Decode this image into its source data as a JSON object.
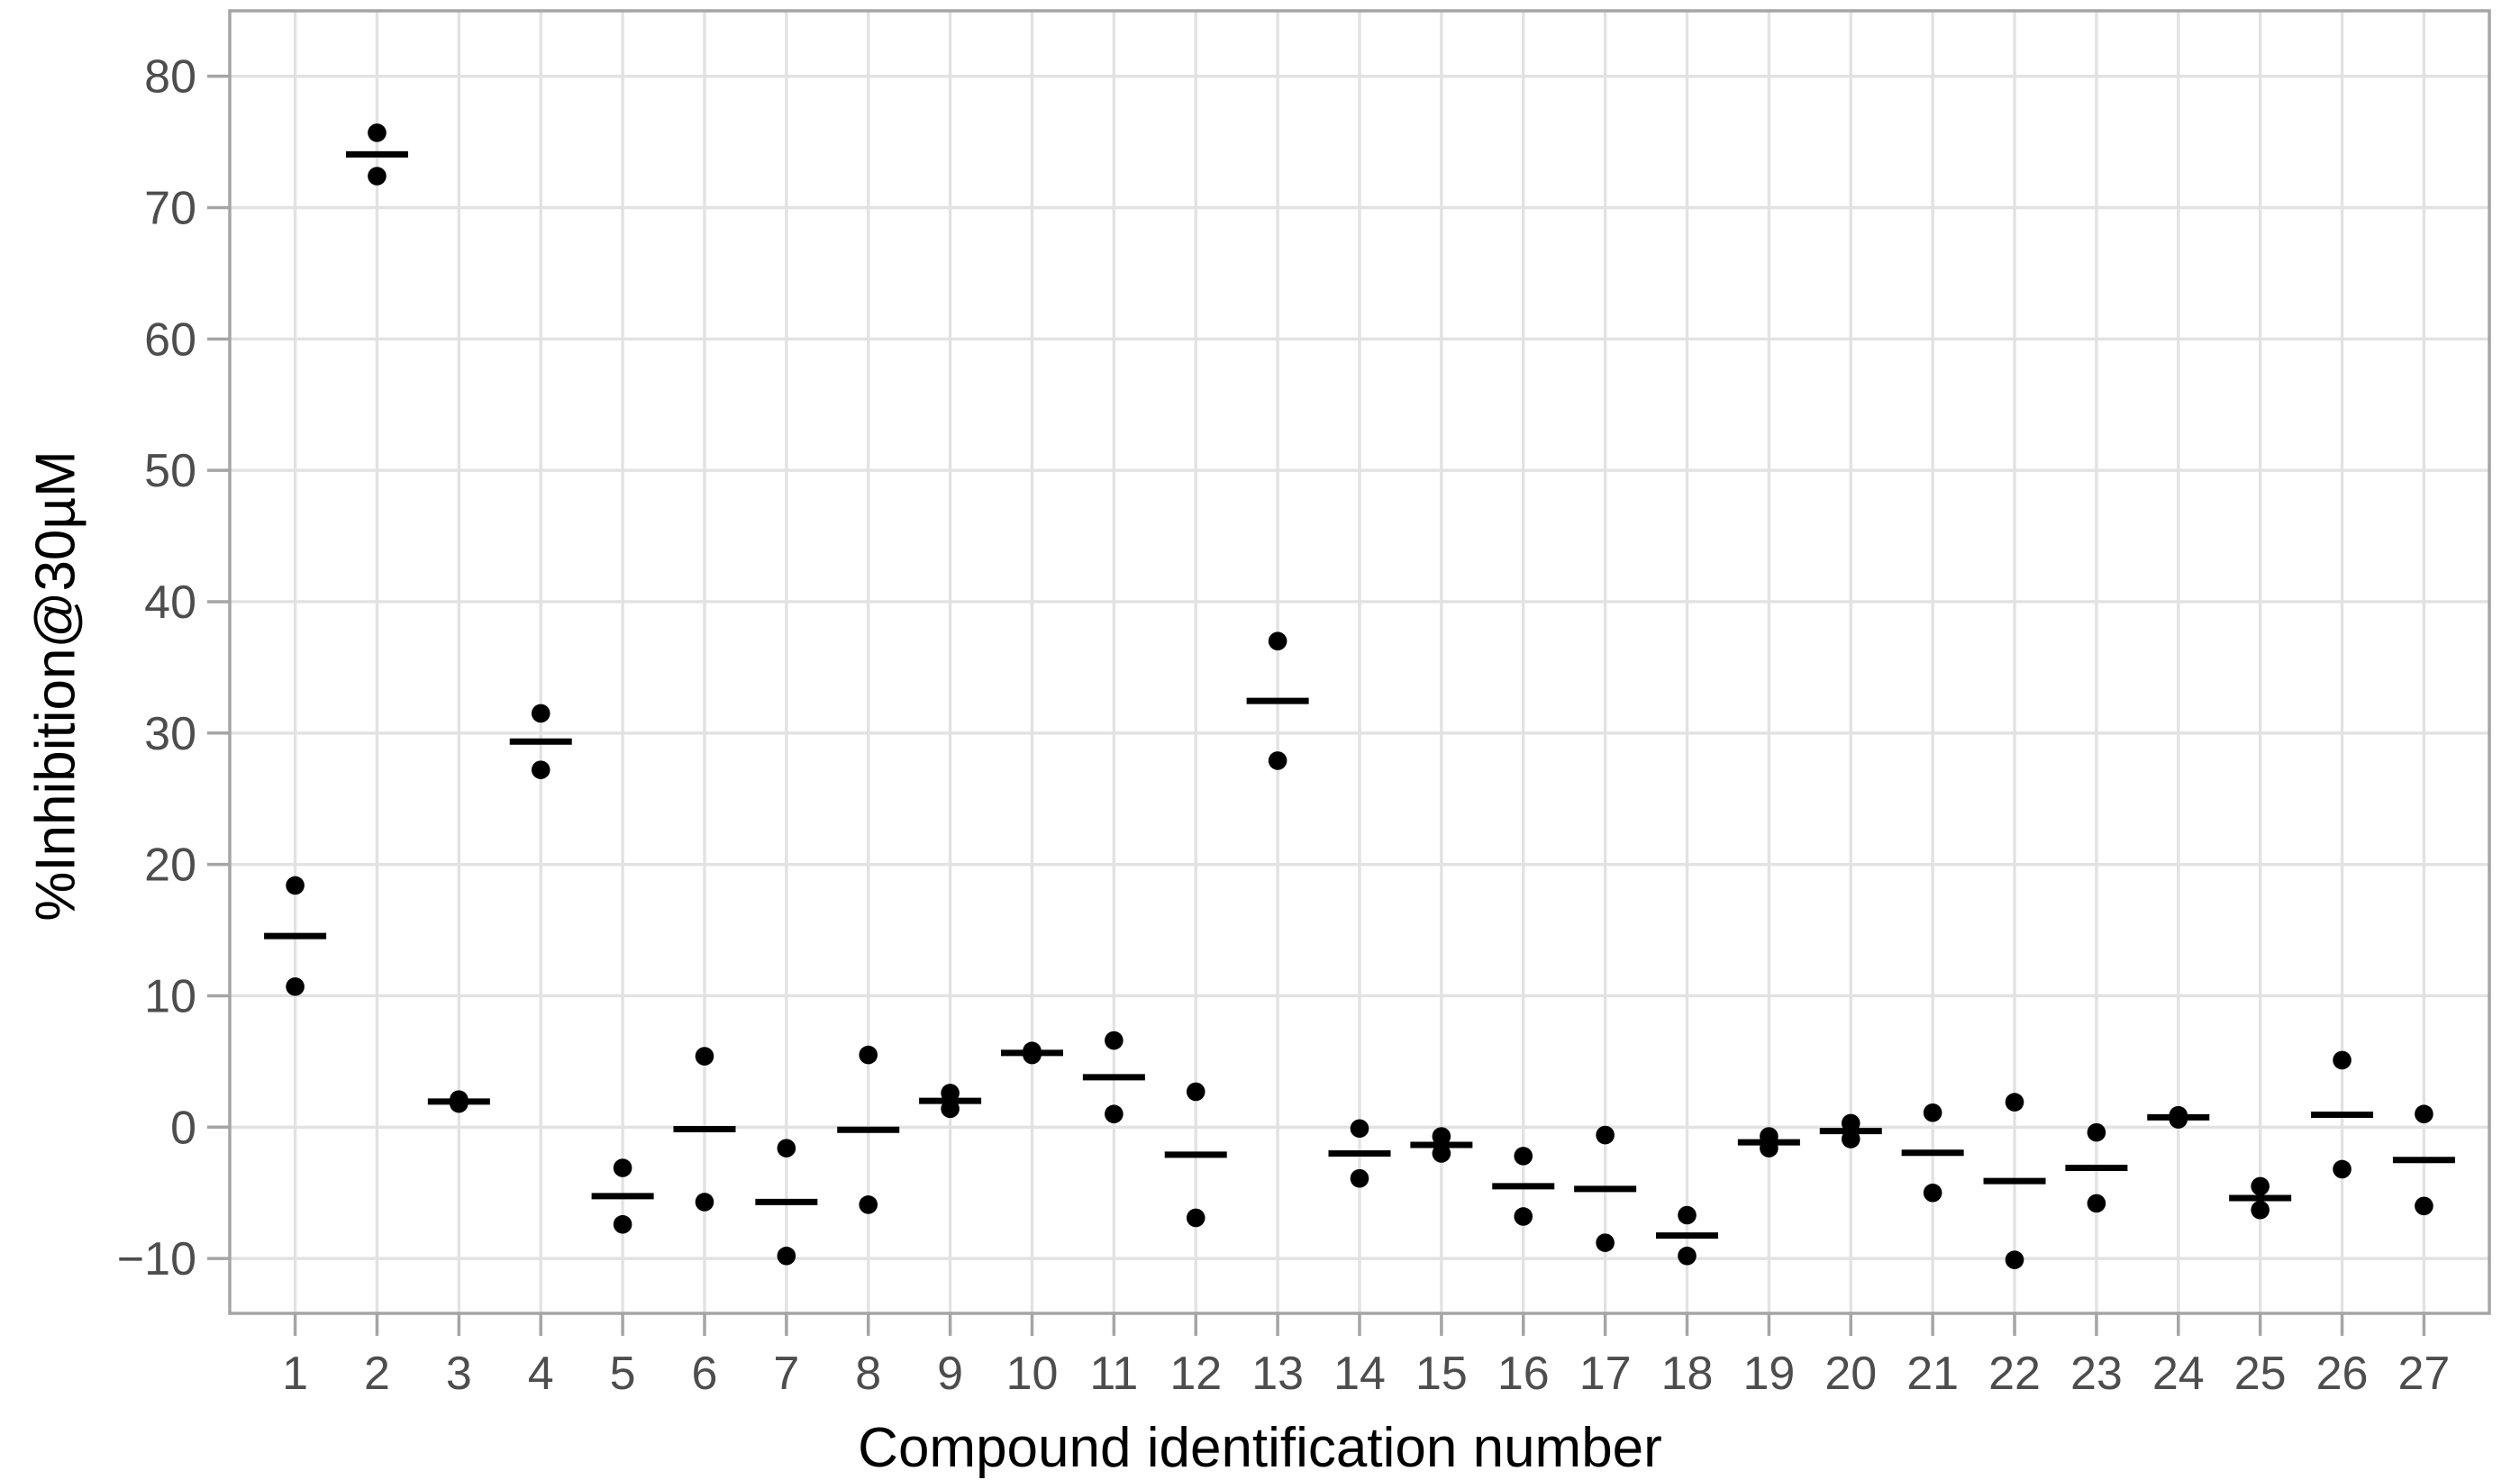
{
  "chart_data": {
    "type": "scatter",
    "title": "",
    "xlabel": "Compound identification number",
    "ylabel": "%Inhibition@30µM",
    "x_tick_labels": [
      "1",
      "2",
      "3",
      "4",
      "5",
      "6",
      "7",
      "8",
      "9",
      "10",
      "11",
      "12",
      "13",
      "14",
      "15",
      "16",
      "17",
      "18",
      "19",
      "20",
      "21",
      "22",
      "23",
      "24",
      "25",
      "26",
      "27"
    ],
    "y_ticks": [
      -10,
      0,
      10,
      20,
      30,
      40,
      50,
      60,
      70,
      80
    ],
    "ylim": [
      -14.2,
      85.0
    ],
    "grid": "major gridlines: horizontal every 10 units, vertical at every compound",
    "legend_position": "none",
    "marker_style": "black dots (replicates) with black horizontal mean bar per compound",
    "compounds": [
      {
        "id": 1,
        "replicates": [
          18.4,
          10.7
        ],
        "mean": 14.55
      },
      {
        "id": 2,
        "replicates": [
          75.7,
          72.4
        ],
        "mean": 74.05
      },
      {
        "id": 3,
        "replicates": [
          2.1,
          1.8
        ],
        "mean": 1.95
      },
      {
        "id": 4,
        "replicates": [
          31.5,
          27.2
        ],
        "mean": 29.35
      },
      {
        "id": 5,
        "replicates": [
          -3.1,
          -7.4
        ],
        "mean": -5.25
      },
      {
        "id": 6,
        "replicates": [
          5.4,
          -5.7
        ],
        "mean": -0.15
      },
      {
        "id": 7,
        "replicates": [
          -1.6,
          -9.8
        ],
        "mean": -5.7
      },
      {
        "id": 8,
        "replicates": [
          5.5,
          -5.9
        ],
        "mean": -0.2
      },
      {
        "id": 9,
        "replicates": [
          2.6,
          1.4
        ],
        "mean": 2.0
      },
      {
        "id": 10,
        "replicates": [
          5.8,
          5.5
        ],
        "mean": 5.65
      },
      {
        "id": 11,
        "replicates": [
          6.6,
          1.0
        ],
        "mean": 3.8
      },
      {
        "id": 12,
        "replicates": [
          2.7,
          -6.9
        ],
        "mean": -2.1
      },
      {
        "id": 13,
        "replicates": [
          37.0,
          27.9
        ],
        "mean": 32.45
      },
      {
        "id": 14,
        "replicates": [
          -0.1,
          -3.9
        ],
        "mean": -2.0
      },
      {
        "id": 15,
        "replicates": [
          -0.7,
          -2.0
        ],
        "mean": -1.35
      },
      {
        "id": 16,
        "replicates": [
          -2.2,
          -6.8
        ],
        "mean": -4.5
      },
      {
        "id": 17,
        "replicates": [
          -0.6,
          -8.8
        ],
        "mean": -4.7
      },
      {
        "id": 18,
        "replicates": [
          -6.7,
          -9.8
        ],
        "mean": -8.25
      },
      {
        "id": 19,
        "replicates": [
          -0.7,
          -1.6
        ],
        "mean": -1.15
      },
      {
        "id": 20,
        "replicates": [
          0.3,
          -0.9
        ],
        "mean": -0.3
      },
      {
        "id": 21,
        "replicates": [
          1.1,
          -5.0
        ],
        "mean": -1.95
      },
      {
        "id": 22,
        "replicates": [
          1.9,
          -10.1
        ],
        "mean": -4.1
      },
      {
        "id": 23,
        "replicates": [
          -0.4,
          -5.8
        ],
        "mean": -3.1
      },
      {
        "id": 24,
        "replicates": [
          0.9,
          0.6
        ],
        "mean": 0.75
      },
      {
        "id": 25,
        "replicates": [
          -4.5,
          -6.3
        ],
        "mean": -5.4
      },
      {
        "id": 26,
        "replicates": [
          5.1,
          -3.2
        ],
        "mean": 0.95
      },
      {
        "id": 27,
        "replicates": [
          1.0,
          -6.0
        ],
        "mean": -2.5
      }
    ]
  },
  "colors": {
    "background": "#ffffff",
    "panel_background": "#ffffff",
    "gridline": "#e2e2e2",
    "panel_border": "#a5a5a5",
    "tick_mark": "#a5a5a5",
    "tick_label": "#4d4d4d",
    "axis_title": "#000000",
    "point": "#000000",
    "mean_bar": "#000000"
  }
}
